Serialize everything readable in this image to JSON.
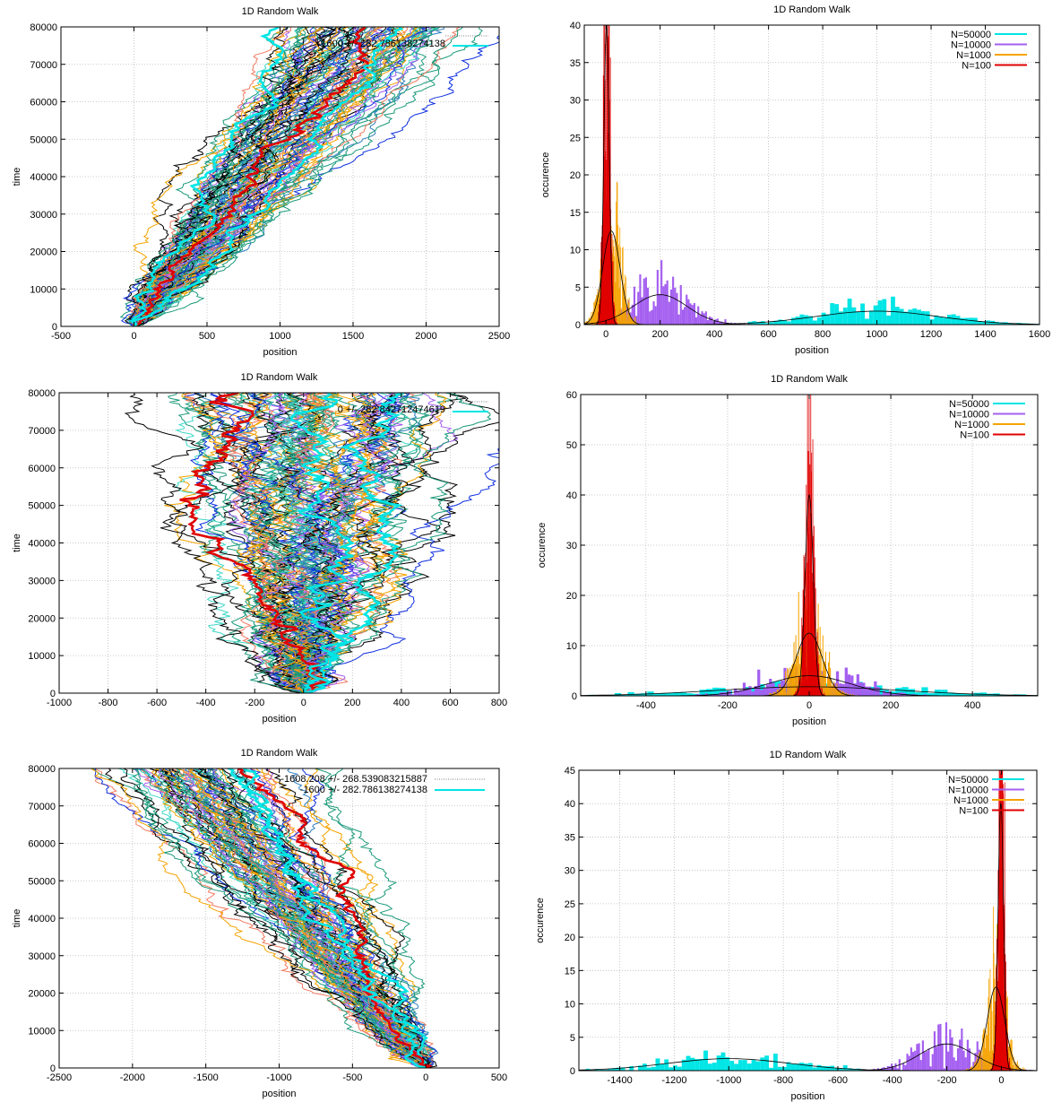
{
  "colors": {
    "cyan": "#00e5e5",
    "purple": "#a45ff0",
    "orange": "#f5a300",
    "red": "#e00000",
    "black": "#000000",
    "teal": "#1a9a7a",
    "blue": "#1030e0",
    "salmon": "#f07a60",
    "steelblue": "#2f7fbf",
    "turquoise": "#40d8c8"
  },
  "chart_data": [
    {
      "type": "line",
      "title": "1D Random Walk",
      "xlabel": "position",
      "ylabel": "time",
      "xlim": [
        -500,
        2500
      ],
      "ylim": [
        0,
        80000
      ],
      "xticks": [
        "-500",
        "0",
        "500",
        "1000",
        "1500",
        "2000",
        "2500"
      ],
      "yticks": [
        "0",
        "10000",
        "20000",
        "30000",
        "40000",
        "50000",
        "60000",
        "70000",
        "80000"
      ],
      "drift": 0.02,
      "legend_text": "1600 +/- 282.786138274138",
      "series_note": "many walks; mean position grows linearly with time"
    },
    {
      "type": "bar",
      "title": "1D Random Walk",
      "xlabel": "position",
      "ylabel": "occurence",
      "xlim": [
        -80,
        1600
      ],
      "ylim": [
        0,
        40
      ],
      "xticks": [
        "0",
        "200",
        "400",
        "600",
        "800",
        "1000",
        "1200",
        "1400",
        "1600"
      ],
      "yticks": [
        "0",
        "5",
        "10",
        "15",
        "20",
        "25",
        "30",
        "35",
        "40"
      ],
      "series": [
        {
          "name": "N=50000",
          "color": "cyan",
          "mean": 1000,
          "sigma": 224,
          "peak": 1.8
        },
        {
          "name": "N=10000",
          "color": "purple",
          "mean": 200,
          "sigma": 100,
          "peak": 4
        },
        {
          "name": "N=1000",
          "color": "orange",
          "mean": 20,
          "sigma": 32,
          "peak": 12.5
        },
        {
          "name": "N=100",
          "color": "red",
          "mean": 2,
          "sigma": 10,
          "peak": 40
        }
      ]
    },
    {
      "type": "line",
      "title": "1D Random Walk",
      "xlabel": "position",
      "ylabel": "time",
      "xlim": [
        -1000,
        800
      ],
      "ylim": [
        0,
        80000
      ],
      "xticks": [
        "-1000",
        "-800",
        "-600",
        "-400",
        "-200",
        "0",
        "200",
        "400",
        "600",
        "800"
      ],
      "yticks": [
        "0",
        "10000",
        "20000",
        "30000",
        "40000",
        "50000",
        "60000",
        "70000",
        "80000"
      ],
      "drift": 0,
      "legend_text": "0 +/- 282.842712474619",
      "series_note": "many walks; spread grows with square root of time"
    },
    {
      "type": "bar",
      "title": "1D Random Walk",
      "xlabel": "position",
      "ylabel": "occurence",
      "xlim": [
        -560,
        560
      ],
      "ylim": [
        0,
        60
      ],
      "xticks": [
        "-400",
        "-200",
        "0",
        "200",
        "400"
      ],
      "yticks": [
        "0",
        "10",
        "20",
        "30",
        "40",
        "50",
        "60"
      ],
      "series": [
        {
          "name": "N=50000",
          "color": "cyan",
          "mean": 0,
          "sigma": 224,
          "peak": 1.8
        },
        {
          "name": "N=10000",
          "color": "purple",
          "mean": 0,
          "sigma": 100,
          "peak": 4
        },
        {
          "name": "N=1000",
          "color": "orange",
          "mean": 0,
          "sigma": 32,
          "peak": 12.5
        },
        {
          "name": "N=100",
          "color": "red",
          "mean": 0,
          "sigma": 10,
          "peak": 40
        }
      ]
    },
    {
      "type": "line",
      "title": "1D Random Walk",
      "xlabel": "position",
      "ylabel": "time",
      "xlim": [
        -2500,
        500
      ],
      "ylim": [
        0,
        80000
      ],
      "xticks": [
        "-2500",
        "-2000",
        "-1500",
        "-1000",
        "-500",
        "0",
        "500"
      ],
      "yticks": [
        "0",
        "10000",
        "20000",
        "30000",
        "40000",
        "50000",
        "60000",
        "70000",
        "80000"
      ],
      "drift": -0.02,
      "legend_entries": [
        "-1608.208 +/- 268.539083215887",
        "-1600 +/- 282.786138274138"
      ],
      "series_note": "many walks; mean position decreases linearly with time"
    },
    {
      "type": "bar",
      "title": "1D Random Walk",
      "xlabel": "position",
      "ylabel": "occurence",
      "xlim": [
        -1550,
        130
      ],
      "ylim": [
        0,
        45
      ],
      "xticks": [
        "-1400",
        "-1200",
        "-1000",
        "-800",
        "-600",
        "-400",
        "-200",
        "0"
      ],
      "yticks": [
        "0",
        "5",
        "10",
        "15",
        "20",
        "25",
        "30",
        "35",
        "40",
        "45"
      ],
      "series": [
        {
          "name": "N=50000",
          "color": "cyan",
          "mean": -1000,
          "sigma": 224,
          "peak": 1.8
        },
        {
          "name": "N=10000",
          "color": "purple",
          "mean": -200,
          "sigma": 100,
          "peak": 4
        },
        {
          "name": "N=1000",
          "color": "orange",
          "mean": -20,
          "sigma": 32,
          "peak": 12.5
        },
        {
          "name": "N=100",
          "color": "red",
          "mean": -2,
          "sigma": 10,
          "peak": 40
        }
      ]
    }
  ]
}
